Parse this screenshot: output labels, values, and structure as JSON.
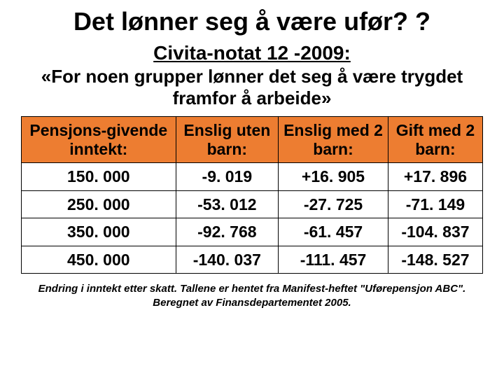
{
  "title": "Det lønner seg å være ufør? ?",
  "subtitle": "Civita-notat 12 -2009:",
  "quote": "«For noen grupper lønner det seg å være trygdet framfor å arbeide»",
  "table": {
    "header_bg_color": "#ed7d31",
    "border_color": "#000000",
    "cell_bg_color": "#ffffff",
    "text_color": "#000000",
    "columns": [
      "Pensjons-givende inntekt:",
      "Enslig uten barn:",
      "Enslig med 2 barn:",
      "Gift med 2 barn:"
    ],
    "rows": [
      [
        "150. 000",
        "-9. 019",
        "+16. 905",
        "+17. 896"
      ],
      [
        "250. 000",
        "-53. 012",
        "-27. 725",
        "-71. 149"
      ],
      [
        "350. 000",
        "-92. 768",
        "-61. 457",
        "-104. 837"
      ],
      [
        "450. 000",
        "-140. 037",
        "-111. 457",
        "-148. 527"
      ]
    ]
  },
  "footer": "Endring i inntekt etter skatt. Tallene er hentet fra Manifest-heftet \"Uførepensjon ABC\". Beregnet av Finansdepartementet 2005."
}
